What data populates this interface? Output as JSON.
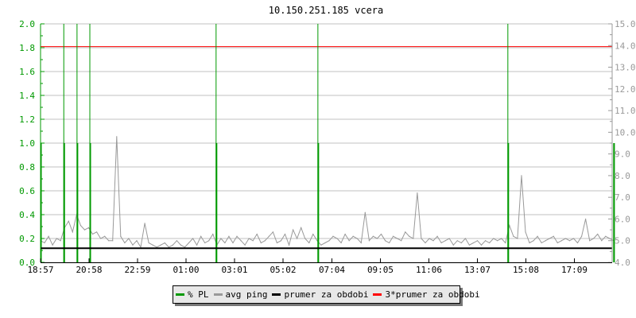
{
  "chart_data": {
    "type": "line",
    "title": "10.150.251.185 vcera",
    "x_tick_labels": [
      "18:57",
      "20:58",
      "22:59",
      "01:00",
      "03:01",
      "05:02",
      "07:04",
      "09:05",
      "11:06",
      "13:07",
      "15:08",
      "17:09"
    ],
    "x_start": "18:57",
    "x_interval_minutes": 10,
    "left_axis": {
      "ylim": [
        0,
        2.0
      ],
      "ticks": [
        "0.0",
        "0.2",
        "0.4",
        "0.6",
        "0.8",
        "1.0",
        "1.2",
        "1.4",
        "1.6",
        "1.8",
        "2.0"
      ],
      "color": "#009900"
    },
    "right_axis": {
      "ylim": [
        4.0,
        15.0
      ],
      "ticks": [
        "4.0",
        "5.0",
        "6.0",
        "7.0",
        "8.0",
        "9.0",
        "10.0",
        "11.0",
        "12.0",
        "13.0",
        "14.0",
        "15.0"
      ],
      "color": "#999999"
    },
    "grid": true,
    "legend_position": "bottom",
    "series": [
      {
        "name": "% PL",
        "color": "#009900",
        "axis": "left",
        "type": "spikes",
        "events": [
          {
            "time": "18:57",
            "value": 1.0,
            "max": 2.0
          },
          {
            "time": "19:55",
            "value": 1.0,
            "max": 2.0
          },
          {
            "time": "20:28",
            "value": 1.0,
            "max": 2.0
          },
          {
            "time": "21:00",
            "value": 1.0,
            "max": 2.0
          },
          {
            "time": "02:15",
            "value": 1.0,
            "max": 2.0
          },
          {
            "time": "06:29",
            "value": 1.0,
            "max": 2.0
          },
          {
            "time": "14:23",
            "value": 1.0,
            "max": 2.0
          },
          {
            "time": "18:47",
            "value": 1.0,
            "max": 1.0
          }
        ]
      },
      {
        "name": "avg ping",
        "color": "#999999",
        "axis": "right",
        "values": [
          5.0,
          4.9,
          5.2,
          4.8,
          5.1,
          5.0,
          5.6,
          5.9,
          5.4,
          6.2,
          5.7,
          5.5,
          5.6,
          5.3,
          5.4,
          5.1,
          5.2,
          5.0,
          5.0,
          9.8,
          5.2,
          4.9,
          5.1,
          4.8,
          5.0,
          4.7,
          5.8,
          4.9,
          4.8,
          4.7,
          4.8,
          4.9,
          4.7,
          4.8,
          5.0,
          4.8,
          4.7,
          4.9,
          5.1,
          4.8,
          5.2,
          4.9,
          5.0,
          5.3,
          4.8,
          5.1,
          4.9,
          5.2,
          4.9,
          5.2,
          5.0,
          4.8,
          5.1,
          5.0,
          5.3,
          4.9,
          5.0,
          5.2,
          5.4,
          4.9,
          5.0,
          5.3,
          4.8,
          5.5,
          5.1,
          5.6,
          5.1,
          4.9,
          5.3,
          5.0,
          4.8,
          4.9,
          5.0,
          5.2,
          5.1,
          4.9,
          5.3,
          5.0,
          5.2,
          5.1,
          4.9,
          6.3,
          5.0,
          5.2,
          5.1,
          5.3,
          5.0,
          4.9,
          5.2,
          5.1,
          5.0,
          5.4,
          5.2,
          5.1,
          7.2,
          5.1,
          4.9,
          5.1,
          5.0,
          5.2,
          4.9,
          5.0,
          5.1,
          4.8,
          5.0,
          4.9,
          5.1,
          4.8,
          4.9,
          5.0,
          4.8,
          5.0,
          4.9,
          5.1,
          5.0,
          5.1,
          4.9,
          5.7,
          5.2,
          5.1,
          8.0,
          5.4,
          4.9,
          5.0,
          5.2,
          4.9,
          5.0,
          5.1,
          5.2,
          4.9,
          5.0,
          5.1,
          5.0,
          5.1,
          4.9,
          5.2,
          6.0,
          5.0,
          5.1,
          5.3,
          5.0,
          5.2,
          5.1,
          5.0
        ]
      },
      {
        "name": "prumer za obdobi",
        "color": "#000000",
        "axis": "right",
        "value": 4.65
      },
      {
        "name": "3*prumer za obdobi",
        "color": "#ff0000",
        "axis": "right",
        "value": 13.95
      }
    ]
  }
}
